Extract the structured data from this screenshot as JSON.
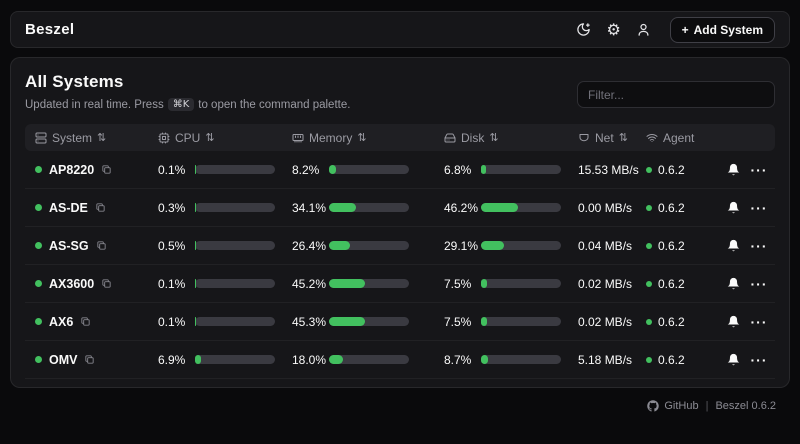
{
  "app": {
    "name": "Beszel",
    "plus": "+",
    "add_system_label": "Add System",
    "gear_glyph": "⚙"
  },
  "page": {
    "title": "All Systems",
    "subtitle_prefix": "Updated in real time. Press",
    "command_kbd": "⌘K",
    "subtitle_suffix": "to open the command palette.",
    "filter_placeholder": "Filter..."
  },
  "table": {
    "sort_glyph": "⇅",
    "columns": [
      {
        "label": "System",
        "icon": "server-icon",
        "sortable": true
      },
      {
        "label": "CPU",
        "icon": "cpu-icon",
        "sortable": true
      },
      {
        "label": "Memory",
        "icon": "memory-stick-icon",
        "sortable": true
      },
      {
        "label": "Disk",
        "icon": "hard-drive-icon",
        "sortable": true
      },
      {
        "label": "Net",
        "icon": "ethernet-port-icon",
        "sortable": true
      },
      {
        "label": "Agent",
        "icon": "wifi-icon",
        "sortable": false
      }
    ],
    "rows": [
      {
        "name": "AP8220",
        "status": "online",
        "cpu": "0.1%",
        "cpu_pct": 0.1,
        "mem": "8.2%",
        "mem_pct": 8.2,
        "disk": "6.8%",
        "disk_pct": 6.8,
        "net": "15.53 MB/s",
        "agent": "0.6.2"
      },
      {
        "name": "AS-DE",
        "status": "online",
        "cpu": "0.3%",
        "cpu_pct": 0.3,
        "mem": "34.1%",
        "mem_pct": 34.1,
        "disk": "46.2%",
        "disk_pct": 46.2,
        "net": "0.00 MB/s",
        "agent": "0.6.2"
      },
      {
        "name": "AS-SG",
        "status": "online",
        "cpu": "0.5%",
        "cpu_pct": 0.5,
        "mem": "26.4%",
        "mem_pct": 26.4,
        "disk": "29.1%",
        "disk_pct": 29.1,
        "net": "0.04 MB/s",
        "agent": "0.6.2"
      },
      {
        "name": "AX3600",
        "status": "online",
        "cpu": "0.1%",
        "cpu_pct": 0.1,
        "mem": "45.2%",
        "mem_pct": 45.2,
        "disk": "7.5%",
        "disk_pct": 7.5,
        "net": "0.02 MB/s",
        "agent": "0.6.2"
      },
      {
        "name": "AX6",
        "status": "online",
        "cpu": "0.1%",
        "cpu_pct": 0.1,
        "mem": "45.3%",
        "mem_pct": 45.3,
        "disk": "7.5%",
        "disk_pct": 7.5,
        "net": "0.02 MB/s",
        "agent": "0.6.2"
      },
      {
        "name": "OMV",
        "status": "online",
        "cpu": "6.9%",
        "cpu_pct": 6.9,
        "mem": "18.0%",
        "mem_pct": 18.0,
        "disk": "8.7%",
        "disk_pct": 8.7,
        "net": "5.18 MB/s",
        "agent": "0.6.2"
      }
    ]
  },
  "footer": {
    "github_label": "GitHub",
    "separator": "|",
    "version_label": "Beszel 0.6.2"
  },
  "icons": {
    "menu_glyph": "···"
  },
  "colors": {
    "accent_green": "#42c05f"
  }
}
